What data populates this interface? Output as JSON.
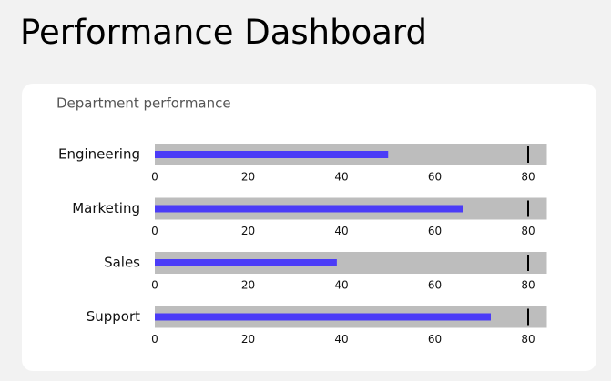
{
  "header": {
    "title": "Performance Dashboard"
  },
  "chart_data": {
    "type": "bullet",
    "title": "Department performance",
    "categories": [
      "Engineering",
      "Marketing",
      "Sales",
      "Support"
    ],
    "values": [
      50,
      66,
      39,
      72
    ],
    "targets": [
      80,
      80,
      80,
      80
    ],
    "color": "#4b3cf7",
    "range_color": "#bdbdbd",
    "target_color": "#000000",
    "xlim": [
      0,
      84
    ],
    "xticks": [
      0,
      20,
      40,
      60,
      80
    ]
  }
}
